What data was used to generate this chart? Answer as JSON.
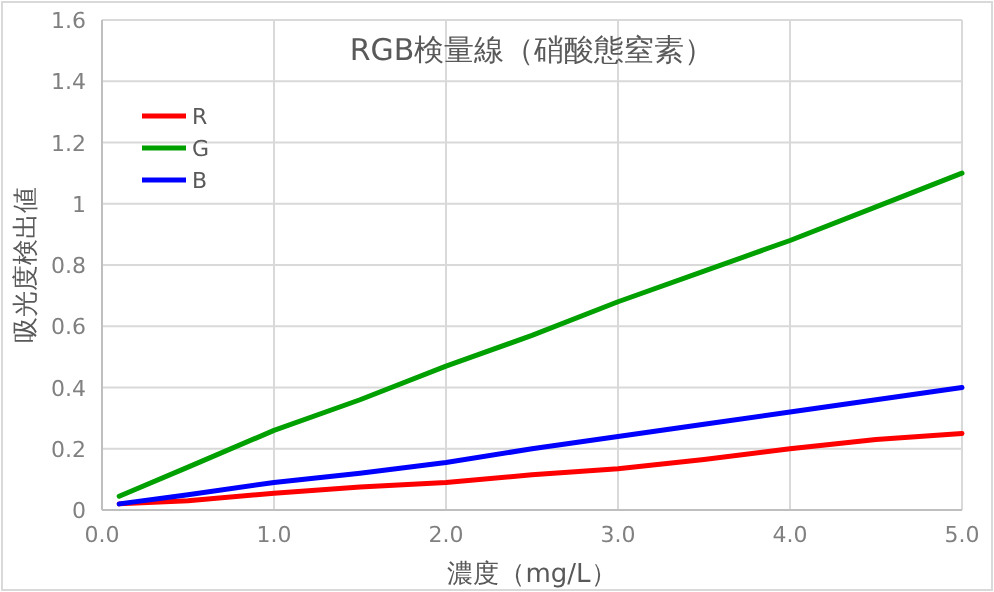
{
  "chart_data": {
    "type": "line",
    "title": "RGB検量線（硝酸態窒素）",
    "xlabel": "濃度（mg/L）",
    "ylabel": "吸光度検出値",
    "x": [
      0.1,
      0.5,
      1.0,
      1.5,
      2.0,
      2.5,
      3.0,
      3.5,
      4.0,
      4.5,
      5.0
    ],
    "series": [
      {
        "name": "R",
        "color": "#ff0000",
        "values": [
          0.02,
          0.03,
          0.055,
          0.075,
          0.09,
          0.115,
          0.135,
          0.165,
          0.2,
          0.23,
          0.25
        ]
      },
      {
        "name": "G",
        "color": "#00a000",
        "values": [
          0.045,
          0.14,
          0.26,
          0.36,
          0.47,
          0.57,
          0.68,
          0.78,
          0.88,
          0.99,
          1.1
        ]
      },
      {
        "name": "B",
        "color": "#0000ff",
        "values": [
          0.02,
          0.05,
          0.09,
          0.12,
          0.155,
          0.2,
          0.24,
          0.28,
          0.32,
          0.36,
          0.4
        ]
      }
    ],
    "xlim": [
      0,
      5
    ],
    "xticks": [
      {
        "value": 0,
        "label": "0.0"
      },
      {
        "value": 1,
        "label": "1.0"
      },
      {
        "value": 2,
        "label": "2.0"
      },
      {
        "value": 3,
        "label": "3.0"
      },
      {
        "value": 4,
        "label": "4.0"
      },
      {
        "value": 5,
        "label": "5.0"
      }
    ],
    "ylim": [
      0,
      1.6
    ],
    "yticks": [
      0,
      0.2,
      0.4,
      0.6,
      0.8,
      1,
      1.2,
      1.4,
      1.6
    ],
    "grid": true,
    "legend": "top left",
    "marker": "none",
    "line_style": "solid"
  }
}
